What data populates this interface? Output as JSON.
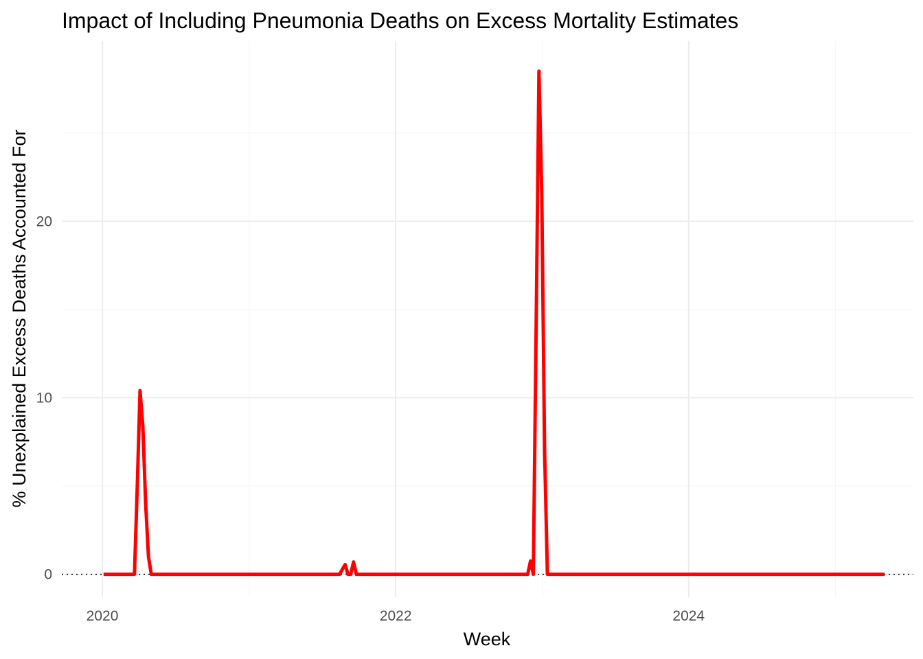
{
  "chart_data": {
    "type": "line",
    "title": "Impact of Including Pneumonia Deaths on Excess Mortality Estimates",
    "xlabel": "Week",
    "ylabel": "% Unexplained Excess Deaths Accounted For",
    "x_ticks": [
      "2020",
      "2022",
      "2024"
    ],
    "y_ticks": [
      "0",
      "10",
      "20"
    ],
    "xlim": [
      "2019-09-22",
      "2025-07-14"
    ],
    "ylim": [
      -1.3,
      30.2
    ],
    "grid": true,
    "reference_line": {
      "y": 0,
      "style": "dotted",
      "color": "#000000"
    },
    "series": [
      {
        "color": "#ff0000",
        "points": [
          [
            "2020-01-04",
            0
          ],
          [
            "2020-03-21",
            0
          ],
          [
            "2020-03-28",
            5.0
          ],
          [
            "2020-04-04",
            10.4
          ],
          [
            "2020-04-11",
            8.4
          ],
          [
            "2020-04-18",
            4.0
          ],
          [
            "2020-04-25",
            1.0
          ],
          [
            "2020-05-02",
            0
          ],
          [
            "2021-08-14",
            0
          ],
          [
            "2021-08-28",
            0.55
          ],
          [
            "2021-09-04",
            0
          ],
          [
            "2021-09-11",
            0
          ],
          [
            "2021-09-18",
            0.7
          ],
          [
            "2021-09-25",
            0
          ],
          [
            "2022-11-26",
            0
          ],
          [
            "2022-12-03",
            0.75
          ],
          [
            "2022-12-10",
            0
          ],
          [
            "2022-12-17",
            14.0
          ],
          [
            "2022-12-24",
            28.5
          ],
          [
            "2022-12-31",
            21.5
          ],
          [
            "2023-01-07",
            7.0
          ],
          [
            "2023-01-14",
            0
          ],
          [
            "2025-05-03",
            0
          ]
        ]
      }
    ]
  },
  "colors": {
    "series": "#ff0000",
    "grid_major": "#ebebeb",
    "grid_minor": "#f5f5f5",
    "tick_text": "#4d4d4d"
  }
}
